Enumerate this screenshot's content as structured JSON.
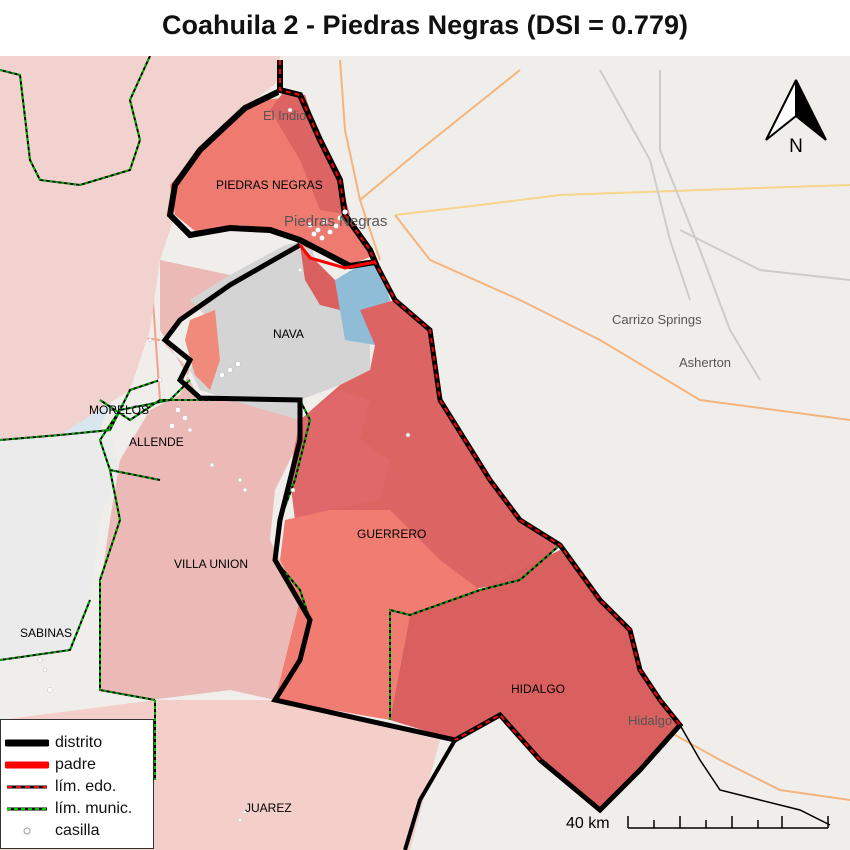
{
  "title": "Coahuila 2 - Piedras Negras (DSI = 0.779)",
  "map": {
    "colors": {
      "district_dark": "#d9605f",
      "district_mid": "#ee7b70",
      "district_light": "#f08c80",
      "pink_light": "#ecbab6",
      "pink_pale": "#f4cfc9",
      "grey_area": "#d4d4d4",
      "blue_area": "#8fbcd6",
      "basemap": "#f0eeeb",
      "road_orange": "#f4b47c",
      "road_yellow": "#f7d58a",
      "border_black": "#000000",
      "border_red": "#ff0000",
      "municipal_green": "#00aa00"
    },
    "municipality_labels": [
      {
        "name": "PIEDRAS NEGRAS"
      },
      {
        "name": "NAVA"
      },
      {
        "name": "MORELOS"
      },
      {
        "name": "ALLENDE"
      },
      {
        "name": "GUERRERO"
      },
      {
        "name": "VILLA UNION"
      },
      {
        "name": "SABINAS"
      },
      {
        "name": "HIDALGO"
      },
      {
        "name": "JUAREZ"
      }
    ],
    "basemap_labels": [
      {
        "name": "El Indio"
      },
      {
        "name": "Piedras Negras"
      },
      {
        "name": "Carrizo Springs"
      },
      {
        "name": "Asherton"
      },
      {
        "name": "Hidalgo"
      }
    ]
  },
  "north_arrow": {
    "label": "N"
  },
  "scale_bar": {
    "label": "40 km"
  },
  "legend": {
    "items": [
      {
        "label": "distrito",
        "symbol": "thick-black-line"
      },
      {
        "label": "padre",
        "symbol": "thick-red-line"
      },
      {
        "label": "lím. edo.",
        "symbol": "red-black-dashed-line"
      },
      {
        "label": "lím. munic.",
        "symbol": "green-black-dashed-line"
      },
      {
        "label": "casilla",
        "symbol": "hollow-dot"
      }
    ]
  }
}
